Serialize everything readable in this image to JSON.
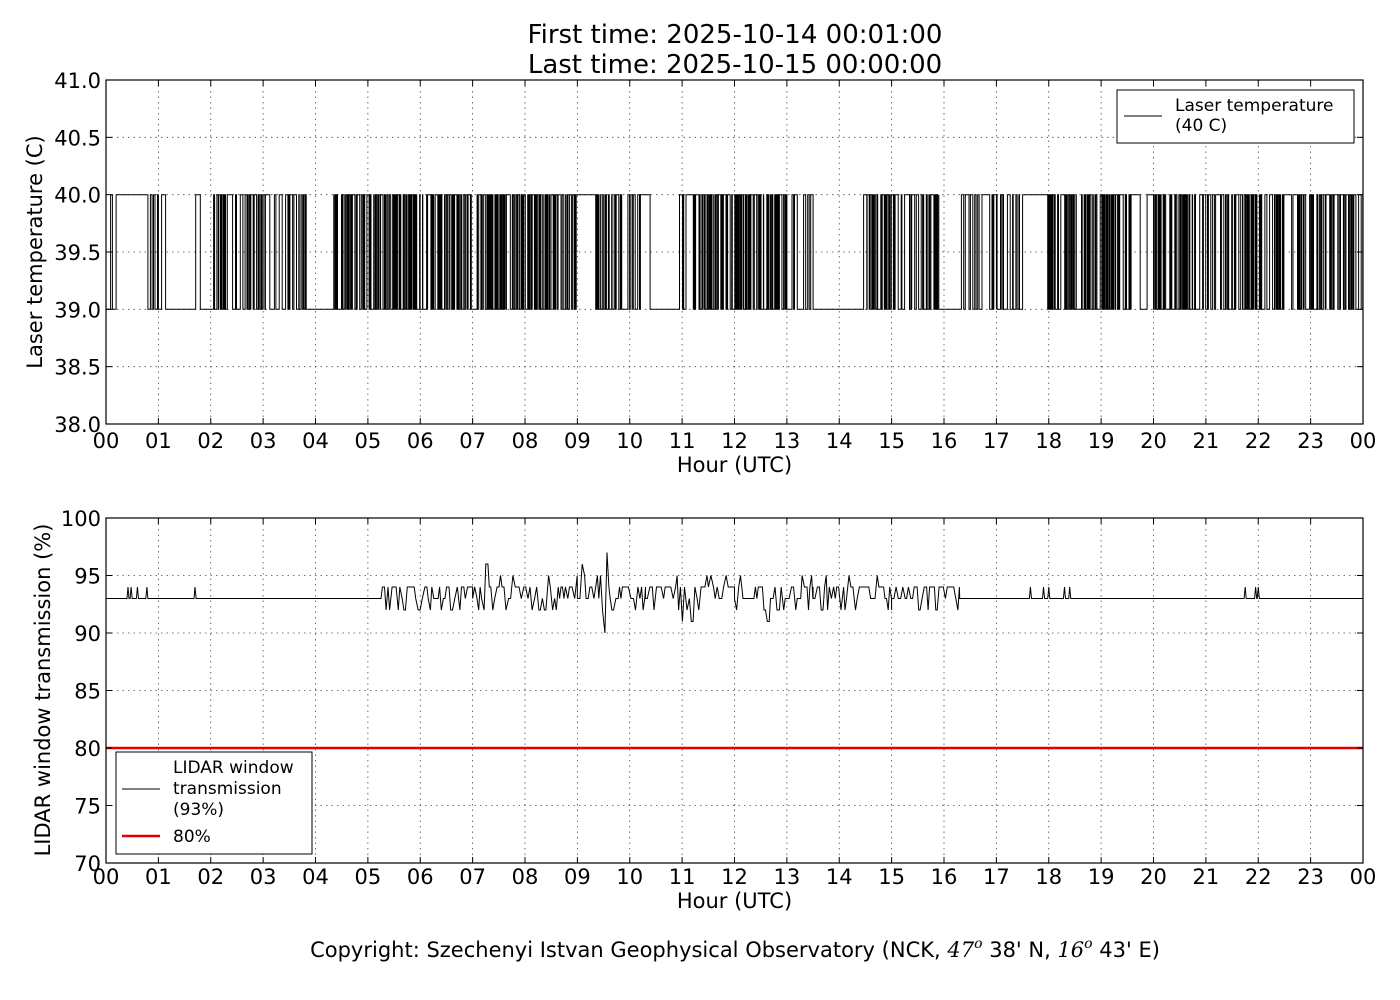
{
  "title_line1": "First time: 2025-10-14 00:01:00",
  "title_line2": "Last time: 2025-10-15 00:00:00",
  "copyright_prefix": "Copyright: Szechenyi Istvan Geophysical Observatory (NCK, ",
  "copyright_lat_deg": "47",
  "copyright_lat_sup": "o",
  "copyright_lat_min": "  38' N, ",
  "copyright_lon_deg": "16",
  "copyright_lon_sup": "o",
  "copyright_lon_min": "  43' E)",
  "colors": {
    "series": "#000000",
    "threshold": "#e00000",
    "background": "#ffffff"
  },
  "chart_data": [
    {
      "type": "line",
      "xlabel": "Hour (UTC)",
      "ylabel": "Laser temperature (C)",
      "xlim": [
        0,
        24
      ],
      "ylim": [
        38.0,
        41.0
      ],
      "x_tick_labels": [
        "00",
        "01",
        "02",
        "03",
        "04",
        "05",
        "06",
        "07",
        "08",
        "09",
        "10",
        "11",
        "12",
        "13",
        "14",
        "15",
        "16",
        "17",
        "18",
        "19",
        "20",
        "21",
        "22",
        "23",
        "00"
      ],
      "y_ticks": [
        "38.0",
        "38.5",
        "39.0",
        "39.5",
        "40.0",
        "40.5",
        "41.0"
      ],
      "grid": true,
      "legend_position": "upper right",
      "legend": [
        "Laser temperature",
        "(40 C)"
      ],
      "series": [
        {
          "name": "Laser temperature (40 C)",
          "style": "step",
          "levels": [
            39.0,
            40.0
          ],
          "segments": [
            {
              "x0": 0.0,
              "x1": 0.22,
              "switches_per_hour": 40,
              "high_fraction": 0.6
            },
            {
              "x0": 0.22,
              "x1": 0.8,
              "switches_per_hour": 0,
              "high_fraction": 1.0
            },
            {
              "x0": 0.8,
              "x1": 1.0,
              "switches_per_hour": 30,
              "high_fraction": 0.5
            },
            {
              "x0": 1.0,
              "x1": 1.3,
              "switches_per_hour": 10,
              "high_fraction": 0.2
            },
            {
              "x0": 1.3,
              "x1": 1.8,
              "switches_per_hour": 25,
              "high_fraction": 0.35
            },
            {
              "x0": 1.8,
              "x1": 2.05,
              "switches_per_hour": 0,
              "high_fraction": 0.0
            },
            {
              "x0": 2.05,
              "x1": 3.0,
              "switches_per_hour": 80,
              "high_fraction": 0.5
            },
            {
              "x0": 3.0,
              "x1": 3.5,
              "switches_per_hour": 45,
              "high_fraction": 0.45
            },
            {
              "x0": 3.5,
              "x1": 3.85,
              "switches_per_hour": 60,
              "high_fraction": 0.5
            },
            {
              "x0": 3.85,
              "x1": 4.35,
              "switches_per_hour": 0,
              "high_fraction": 0.0
            },
            {
              "x0": 4.35,
              "x1": 9.1,
              "switches_per_hour": 110,
              "high_fraction": 0.5
            },
            {
              "x0": 9.1,
              "x1": 9.35,
              "switches_per_hour": 0,
              "high_fraction": 1.0
            },
            {
              "x0": 9.35,
              "x1": 10.25,
              "switches_per_hour": 90,
              "high_fraction": 0.5
            },
            {
              "x0": 10.25,
              "x1": 10.45,
              "switches_per_hour": 10,
              "high_fraction": 0.3
            },
            {
              "x0": 10.45,
              "x1": 10.95,
              "switches_per_hour": 0,
              "high_fraction": 0.0
            },
            {
              "x0": 10.95,
              "x1": 11.3,
              "switches_per_hour": 50,
              "high_fraction": 0.5
            },
            {
              "x0": 11.3,
              "x1": 13.0,
              "switches_per_hour": 100,
              "high_fraction": 0.5
            },
            {
              "x0": 13.0,
              "x1": 13.5,
              "switches_per_hour": 40,
              "high_fraction": 0.4
            },
            {
              "x0": 13.5,
              "x1": 14.45,
              "switches_per_hour": 0,
              "high_fraction": 0.0
            },
            {
              "x0": 14.45,
              "x1": 15.9,
              "switches_per_hour": 85,
              "high_fraction": 0.5
            },
            {
              "x0": 15.9,
              "x1": 16.3,
              "switches_per_hour": 0,
              "high_fraction": 0.0
            },
            {
              "x0": 16.3,
              "x1": 17.0,
              "switches_per_hour": 50,
              "high_fraction": 0.6
            },
            {
              "x0": 17.0,
              "x1": 17.5,
              "switches_per_hour": 70,
              "high_fraction": 0.5
            },
            {
              "x0": 17.5,
              "x1": 17.95,
              "switches_per_hour": 0,
              "high_fraction": 1.0
            },
            {
              "x0": 17.95,
              "x1": 19.6,
              "switches_per_hour": 110,
              "high_fraction": 0.5
            },
            {
              "x0": 19.6,
              "x1": 20.0,
              "switches_per_hour": 15,
              "high_fraction": 0.3
            },
            {
              "x0": 20.0,
              "x1": 24.0,
              "switches_per_hour": 70,
              "high_fraction": 0.5
            }
          ]
        }
      ]
    },
    {
      "type": "line",
      "xlabel": "Hour (UTC)",
      "ylabel": "LIDAR window transmission (%)",
      "xlim": [
        0,
        24
      ],
      "ylim": [
        70,
        100
      ],
      "x_tick_labels": [
        "00",
        "01",
        "02",
        "03",
        "04",
        "05",
        "06",
        "07",
        "08",
        "09",
        "10",
        "11",
        "12",
        "13",
        "14",
        "15",
        "16",
        "17",
        "18",
        "19",
        "20",
        "21",
        "22",
        "23",
        "00"
      ],
      "y_ticks": [
        "70",
        "75",
        "80",
        "85",
        "90",
        "95",
        "100"
      ],
      "grid": true,
      "legend_position": "lower left",
      "legend": [
        {
          "lines": [
            "LIDAR window",
            "transmission",
            "(93%)"
          ],
          "color": "#000000"
        },
        {
          "lines": [
            "80%"
          ],
          "color": "#e00000"
        }
      ],
      "series": [
        {
          "name": "LIDAR window transmission (93%)",
          "baseline": 93,
          "spikes": [
            {
              "x": 0.42,
              "y": 94
            },
            {
              "x": 0.48,
              "y": 94
            },
            {
              "x": 0.6,
              "y": 94
            },
            {
              "x": 0.78,
              "y": 94
            },
            {
              "x": 1.7,
              "y": 94
            },
            {
              "x": 17.65,
              "y": 94
            },
            {
              "x": 17.9,
              "y": 94
            },
            {
              "x": 18.0,
              "y": 94
            },
            {
              "x": 18.3,
              "y": 94
            },
            {
              "x": 18.4,
              "y": 94
            },
            {
              "x": 21.75,
              "y": 94
            },
            {
              "x": 21.95,
              "y": 94
            },
            {
              "x": 22.0,
              "y": 94
            }
          ],
          "noisy_segments": [
            {
              "x0": 5.25,
              "x1": 7.0,
              "low": 92,
              "high": 94.5
            },
            {
              "x0": 7.0,
              "x1": 9.0,
              "low": 92,
              "high": 95
            },
            {
              "x0": 9.0,
              "x1": 10.3,
              "low": 91,
              "high": 95.5
            },
            {
              "x0": 10.3,
              "x1": 12.0,
              "low": 91,
              "high": 95
            },
            {
              "x0": 12.0,
              "x1": 13.5,
              "low": 92,
              "high": 95
            },
            {
              "x0": 13.5,
              "x1": 15.0,
              "low": 92,
              "high": 95
            },
            {
              "x0": 15.0,
              "x1": 16.3,
              "low": 92,
              "high": 94.5
            }
          ],
          "extremes": [
            {
              "x": 7.28,
              "y": 96
            },
            {
              "x": 9.1,
              "y": 96
            },
            {
              "x": 9.55,
              "y": 97
            },
            {
              "x": 9.53,
              "y": 90
            },
            {
              "x": 12.65,
              "y": 96
            },
            {
              "x": 12.65,
              "y": 91
            },
            {
              "x": 11.0,
              "y": 91
            },
            {
              "x": 11.2,
              "y": 91
            },
            {
              "x": 8.4,
              "y": 92
            },
            {
              "x": 5.35,
              "y": 92
            },
            {
              "x": 15.85,
              "y": 92
            }
          ]
        },
        {
          "name": "80%",
          "constant": 80
        }
      ]
    }
  ]
}
